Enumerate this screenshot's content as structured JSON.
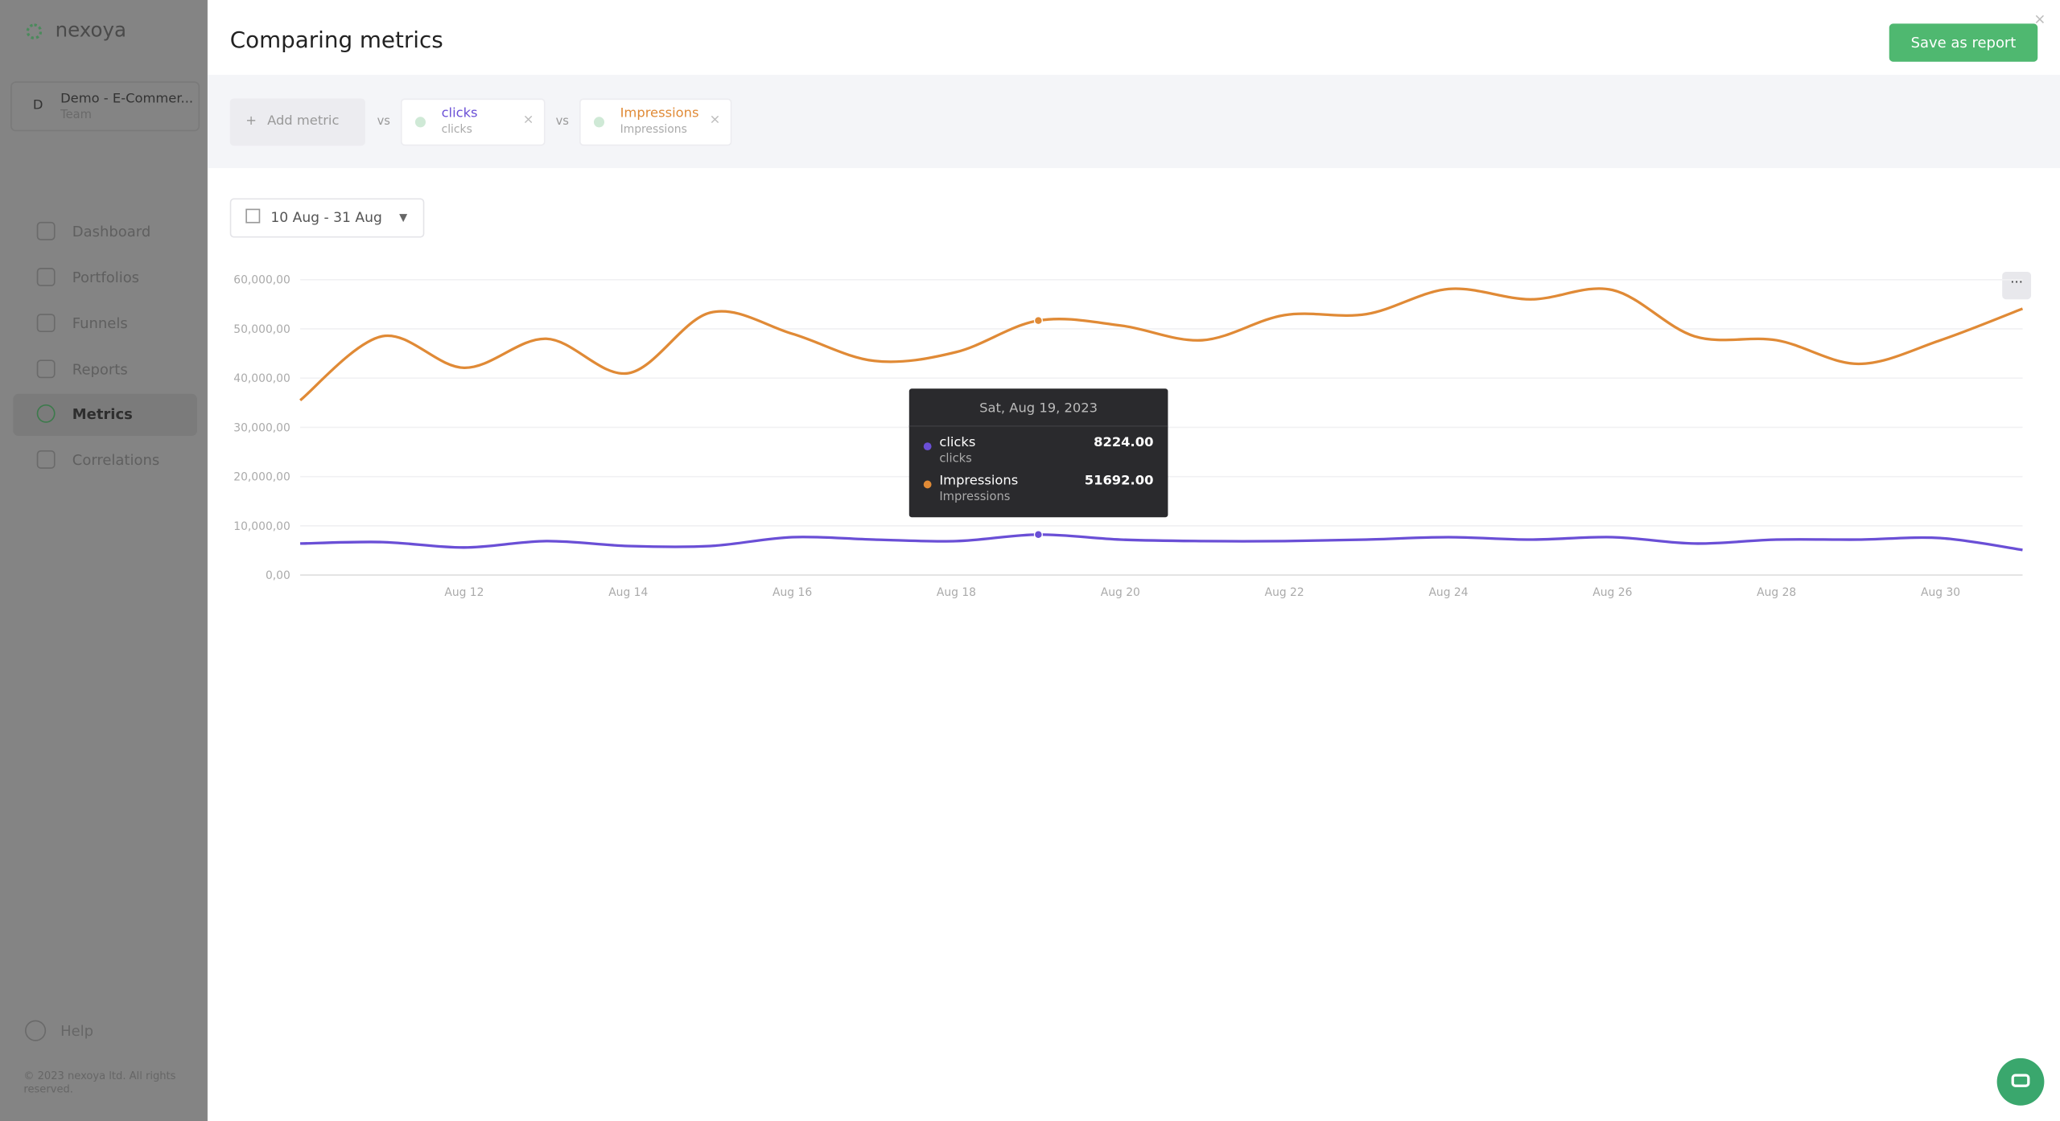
{
  "sidebar": {
    "logo": "nexoya",
    "workspace": {
      "initial": "D",
      "name": "Demo - E-Commer...",
      "team": "Team"
    },
    "nav": [
      "Dashboard",
      "Portfolios",
      "Funnels",
      "Reports",
      "Metrics",
      "Correlations"
    ],
    "help": "Help",
    "footer": "© 2023 nexoya ltd. All rights reserved."
  },
  "header": {
    "title": "Comparing metrics",
    "button": "Save as report"
  },
  "metrics": {
    "add": "Add metric",
    "vs": "vs",
    "items": [
      {
        "name": "clicks",
        "sub": "clicks"
      },
      {
        "name": "Impressions",
        "sub": "Impressions"
      }
    ]
  },
  "date_range": "10 Aug - 31 Aug",
  "tooltip": {
    "title": "Sat, Aug 19, 2023",
    "rows": [
      {
        "name": "clicks",
        "sub": "clicks",
        "value": "8224.00"
      },
      {
        "name": "Impressions",
        "sub": "Impressions",
        "value": "51692.00"
      }
    ]
  },
  "chart_data": {
    "type": "line",
    "categories": [
      null,
      null,
      "Aug 12",
      null,
      "Aug 14",
      null,
      "Aug 16",
      null,
      "Aug 18",
      null,
      "Aug 20",
      null,
      "Aug 22",
      null,
      "Aug 24",
      null,
      "Aug 26",
      null,
      "Aug 28",
      null,
      "Aug 30",
      null
    ],
    "series": [
      {
        "name": "clicks",
        "color": "#6a4fd6",
        "values": [
          6400,
          6700,
          5600,
          6900,
          5900,
          5900,
          7700,
          7200,
          6900,
          8224,
          7200,
          6900,
          6900,
          7200,
          7700,
          7200,
          7700,
          6400,
          7200,
          7200,
          7500,
          5100
        ]
      },
      {
        "name": "Impressions",
        "color": "#e08a36",
        "values": [
          35500,
          48500,
          42100,
          48000,
          41000,
          53300,
          49000,
          43500,
          45300,
          51692,
          50700,
          47700,
          52800,
          53000,
          58100,
          56000,
          57900,
          48500,
          47700,
          42900,
          47700,
          54100
        ]
      }
    ],
    "ylim": [
      0,
      60000
    ],
    "yticks": [
      {
        "value": 0,
        "label": "0,00"
      },
      {
        "value": 10000,
        "label": "10,000,00"
      },
      {
        "value": 20000,
        "label": "20,000,00"
      },
      {
        "value": 30000,
        "label": "30,000,00"
      },
      {
        "value": 40000,
        "label": "40,000,00"
      },
      {
        "value": 50000,
        "label": "50,000,00"
      },
      {
        "value": 60000,
        "label": "60,000,00"
      }
    ],
    "grid": true
  }
}
